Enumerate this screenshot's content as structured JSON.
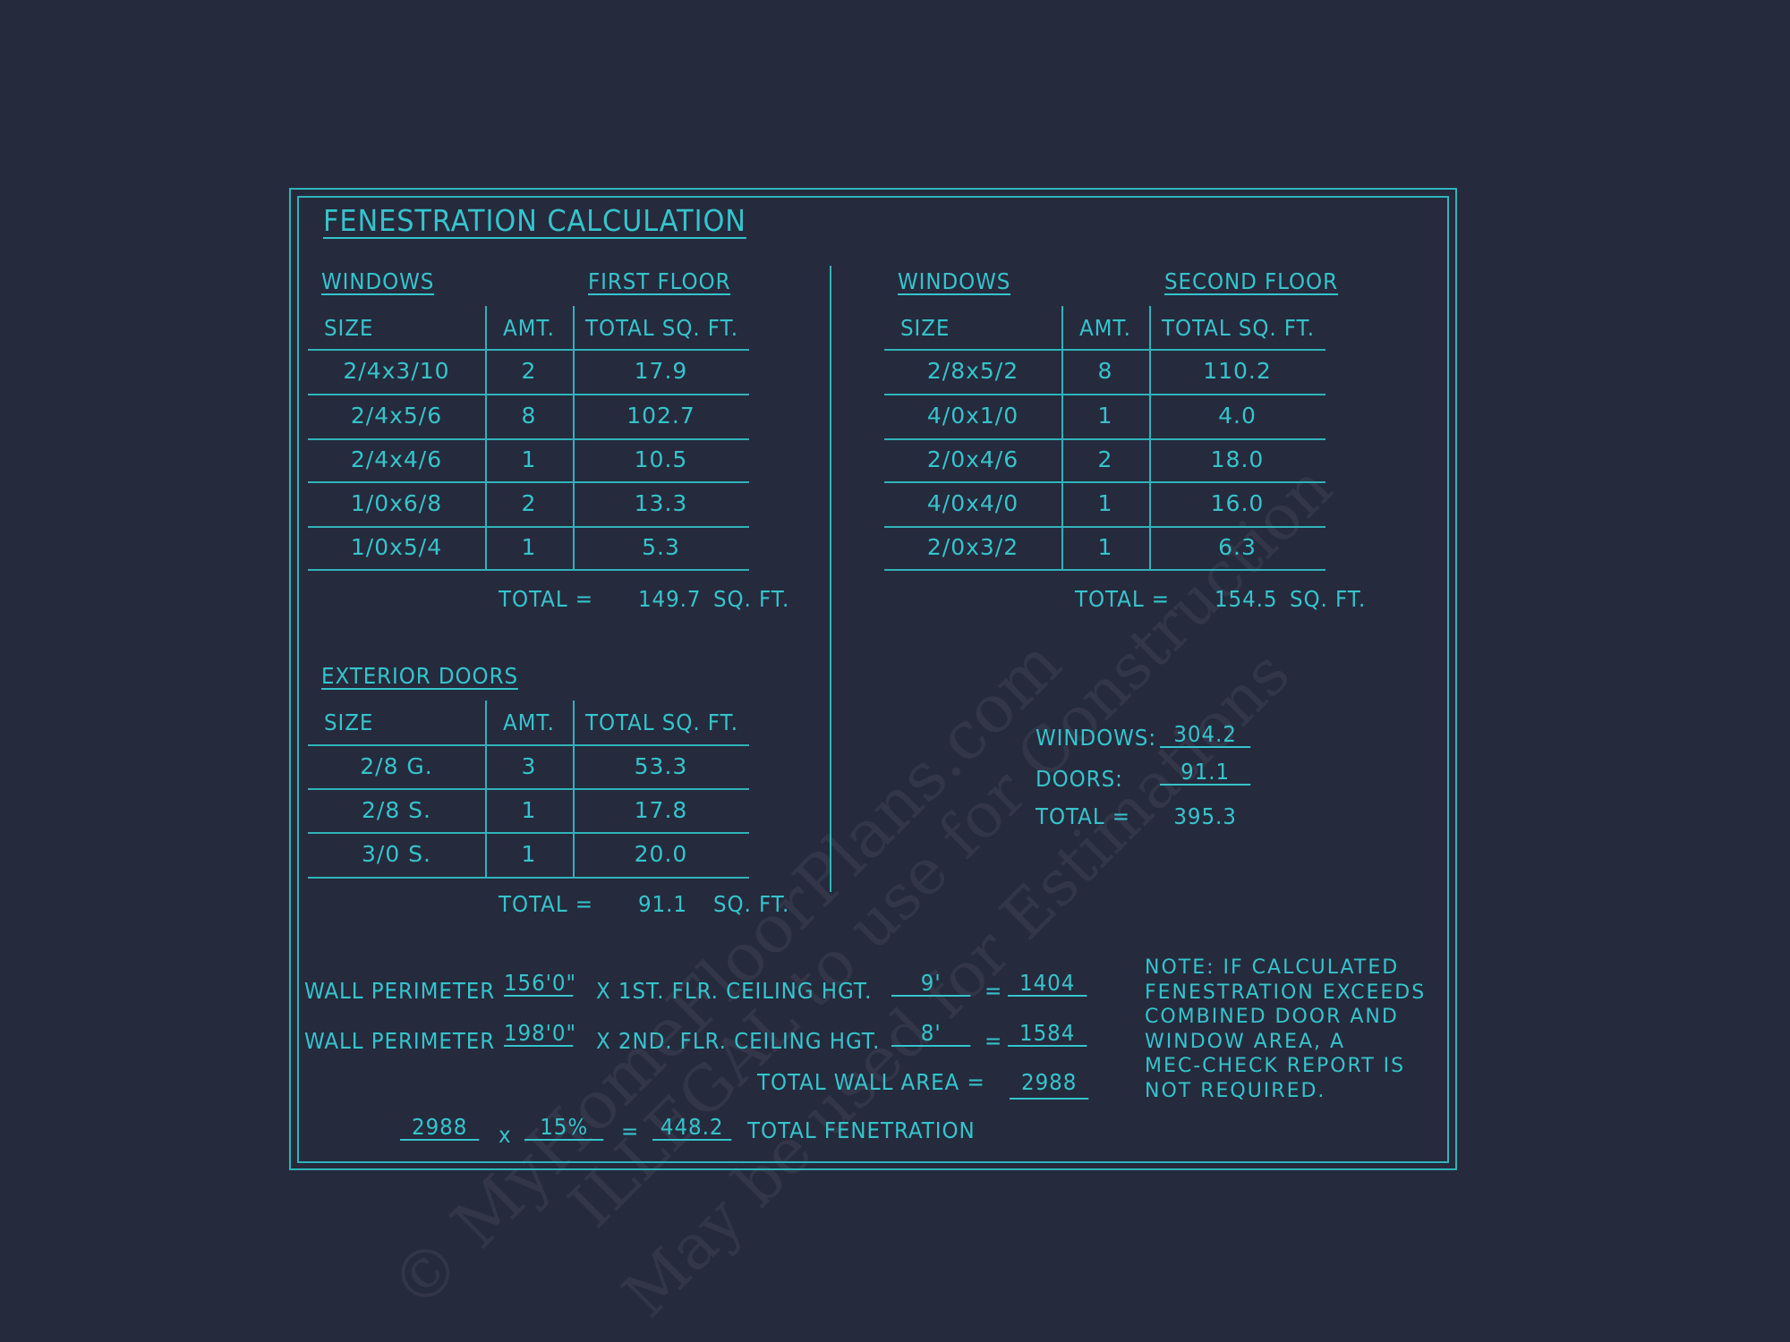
{
  "title": "FENESTRATION CALCULATION",
  "watermark": [
    "© MyHomeFloorPlans.com",
    "ILLEGAL to use for Construction",
    "May be used for Estimations"
  ],
  "colors": {
    "background": "#262a3d",
    "line": "#35c4cc"
  },
  "first_floor": {
    "section_label": "WINDOWS",
    "floor_label": "FIRST FLOOR",
    "headers": [
      "SIZE",
      "AMT.",
      "TOTAL SQ. FT."
    ],
    "rows": [
      [
        "2/4x3/10",
        "2",
        "17.9"
      ],
      [
        "2/4x5/6",
        "8",
        "102.7"
      ],
      [
        "2/4x4/6",
        "1",
        "10.5"
      ],
      [
        "1/0x6/8",
        "2",
        "13.3"
      ],
      [
        "1/0x5/4",
        "1",
        "5.3"
      ]
    ],
    "total_label": "TOTAL =",
    "total_value": "149.7",
    "total_unit": "SQ. FT."
  },
  "second_floor": {
    "section_label": "WINDOWS",
    "floor_label": "SECOND FLOOR",
    "headers": [
      "SIZE",
      "AMT.",
      "TOTAL SQ. FT."
    ],
    "rows": [
      [
        "2/8x5/2",
        "8",
        "110.2"
      ],
      [
        "4/0x1/0",
        "1",
        "4.0"
      ],
      [
        "2/0x4/6",
        "2",
        "18.0"
      ],
      [
        "4/0x4/0",
        "1",
        "16.0"
      ],
      [
        "2/0x3/2",
        "1",
        "6.3"
      ]
    ],
    "total_label": "TOTAL =",
    "total_value": "154.5",
    "total_unit": "SQ. FT."
  },
  "doors": {
    "section_label": "EXTERIOR DOORS",
    "headers": [
      "SIZE",
      "AMT.",
      "TOTAL SQ. FT."
    ],
    "rows": [
      [
        "2/8 G.",
        "3",
        "53.3"
      ],
      [
        "2/8 S.",
        "1",
        "17.8"
      ],
      [
        "3/0 S.",
        "1",
        "20.0"
      ]
    ],
    "total_label": "TOTAL =",
    "total_value": "91.1",
    "total_unit": "SQ. FT."
  },
  "summary": {
    "windows_label": "WINDOWS:",
    "windows_value": "304.2",
    "doors_label": "DOORS:",
    "doors_value": "91.1",
    "total_label": "TOTAL =",
    "total_value": "395.3"
  },
  "walls": {
    "row1": {
      "label": "WALL PERIMETER",
      "perimeter": "156'0\"",
      "mult": "X 1ST. FLR. CEILING HGT.",
      "height": "9'",
      "eq": "=",
      "area": "1404"
    },
    "row2": {
      "label": "WALL PERIMETER",
      "perimeter": "198'0\"",
      "mult": "X 2ND. FLR. CEILING HGT.",
      "height": "8'",
      "eq": "=",
      "area": "1584"
    },
    "total_label": "TOTAL WALL AREA =",
    "total_value": "2988",
    "calc": {
      "area": "2988",
      "x": "x",
      "percent": "15%",
      "eq": "=",
      "result": "448.2",
      "label": "TOTAL FENETRATION"
    }
  },
  "note": [
    "NOTE: IF CALCULATED",
    "FENESTRATION EXCEEDS",
    "COMBINED DOOR AND",
    "WINDOW AREA, A",
    "MEC-CHECK REPORT IS",
    "NOT REQUIRED."
  ]
}
